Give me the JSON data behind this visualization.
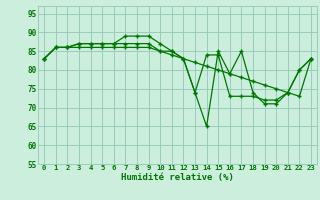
{
  "xlabel": "Humidité relative (%)",
  "xlim": [
    -0.5,
    23.5
  ],
  "ylim": [
    55,
    97
  ],
  "yticks": [
    55,
    60,
    65,
    70,
    75,
    80,
    85,
    90,
    95
  ],
  "xticks": [
    0,
    1,
    2,
    3,
    4,
    5,
    6,
    7,
    8,
    9,
    10,
    11,
    12,
    13,
    14,
    15,
    16,
    17,
    18,
    19,
    20,
    21,
    22,
    23
  ],
  "background_color": "#cceedd",
  "grid_color": "#99ccbb",
  "line_color": "#007700",
  "line1": [
    83,
    86,
    86,
    87,
    87,
    87,
    87,
    89,
    89,
    89,
    87,
    85,
    83,
    74,
    65,
    85,
    79,
    85,
    74,
    71,
    71,
    74,
    80,
    83
  ],
  "line2": [
    83,
    86,
    86,
    87,
    87,
    87,
    87,
    87,
    87,
    87,
    85,
    85,
    83,
    74,
    84,
    84,
    73,
    73,
    73,
    72,
    72,
    74,
    80,
    83
  ],
  "line3": [
    83,
    86,
    86,
    86,
    86,
    86,
    86,
    86,
    86,
    86,
    85,
    84,
    83,
    82,
    81,
    80,
    79,
    78,
    77,
    76,
    75,
    74,
    73,
    83
  ],
  "figsize": [
    3.2,
    2.0
  ],
  "dpi": 100
}
